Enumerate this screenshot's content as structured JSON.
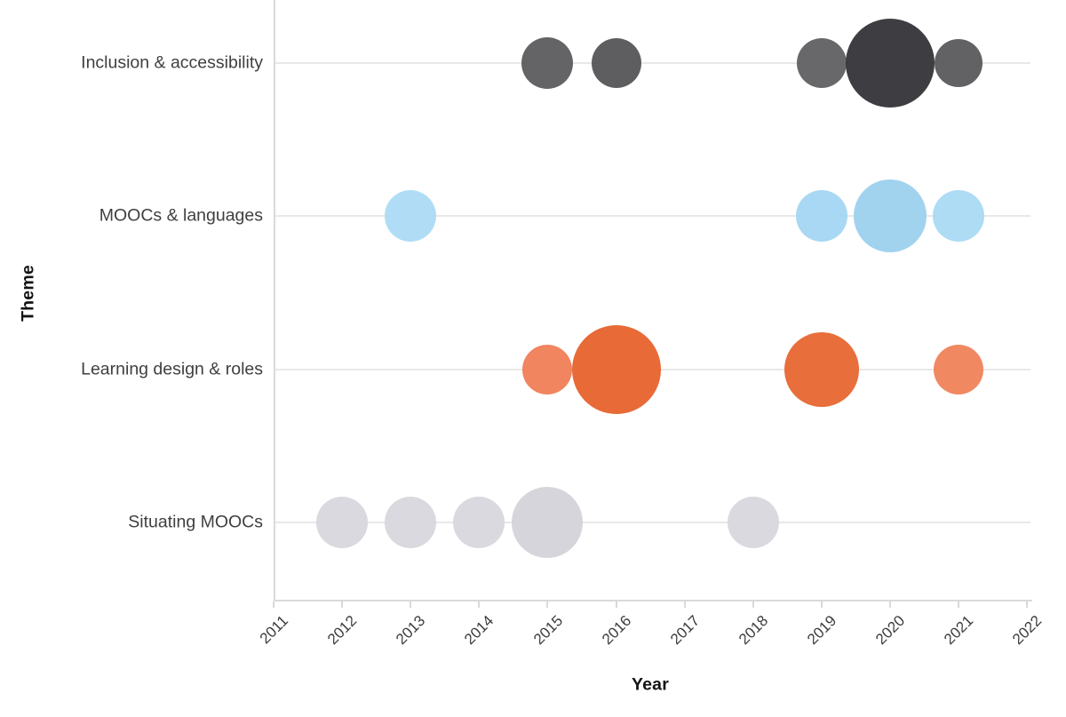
{
  "figure": {
    "background": "#ffffff"
  },
  "chart_data": {
    "type": "bubble",
    "title": "",
    "xlabel": "Year",
    "ylabel": "Theme",
    "x_ticks": [
      2011,
      2012,
      2013,
      2014,
      2015,
      2016,
      2017,
      2018,
      2019,
      2020,
      2021,
      2022
    ],
    "x_range": [
      2011,
      2022
    ],
    "categories": [
      "Inclusion & accessibility",
      "MOOCs & languages",
      "Learning design & roles",
      "Situating MOOCs"
    ],
    "grid": "horizontal category gridlines only",
    "legend": "none",
    "axis_colors": {
      "axis_line": "#dadada",
      "grid_line": "#e8e8e8",
      "tick_label": "#3c3c3c",
      "category_label": "#3f3f3f",
      "axis_title": "#141414"
    },
    "series": [
      {
        "name": "Inclusion & accessibility",
        "base_color": "#59595b",
        "points": [
          {
            "year": 2015,
            "size": 1,
            "radius_px": 29,
            "color": "#5a5a5c"
          },
          {
            "year": 2016,
            "size": 1,
            "radius_px": 28,
            "color": "#545456"
          },
          {
            "year": 2019,
            "size": 1,
            "radius_px": 28,
            "color": "#5f5f61"
          },
          {
            "year": 2020,
            "size": 3,
            "radius_px": 50,
            "color": "#323236"
          },
          {
            "year": 2021,
            "size": 1,
            "radius_px": 27,
            "color": "#58585a"
          }
        ]
      },
      {
        "name": "MOOCs & languages",
        "base_color": "#a5d7f2",
        "points": [
          {
            "year": 2013,
            "size": 1,
            "radius_px": 29,
            "color": "#abdbf4"
          },
          {
            "year": 2019,
            "size": 1,
            "radius_px": 29,
            "color": "#a3d6f2"
          },
          {
            "year": 2020,
            "size": 2,
            "radius_px": 41,
            "color": "#9bd0ee"
          },
          {
            "year": 2021,
            "size": 1,
            "radius_px": 29,
            "color": "#a8daf3"
          }
        ]
      },
      {
        "name": "Learning design & roles",
        "base_color": "#e7622c",
        "points": [
          {
            "year": 2015,
            "size": 1,
            "radius_px": 28,
            "color": "#ef7d55"
          },
          {
            "year": 2016,
            "size": 3,
            "radius_px": 50,
            "color": "#e7612b"
          },
          {
            "year": 2019,
            "size": 2,
            "radius_px": 42,
            "color": "#e7652f"
          },
          {
            "year": 2021,
            "size": 1,
            "radius_px": 28,
            "color": "#ef8157"
          }
        ]
      },
      {
        "name": "Situating MOOCs",
        "base_color": "#d7d7dd",
        "points": [
          {
            "year": 2012,
            "size": 1,
            "radius_px": 29,
            "color": "#d7d7dd"
          },
          {
            "year": 2013,
            "size": 1,
            "radius_px": 29,
            "color": "#d7d7dd"
          },
          {
            "year": 2014,
            "size": 1,
            "radius_px": 29,
            "color": "#d7d7dd"
          },
          {
            "year": 2015,
            "size": 2,
            "radius_px": 40,
            "color": "#d2d2d9"
          },
          {
            "year": 2018,
            "size": 1,
            "radius_px": 29,
            "color": "#d7d7dd"
          }
        ]
      }
    ]
  }
}
